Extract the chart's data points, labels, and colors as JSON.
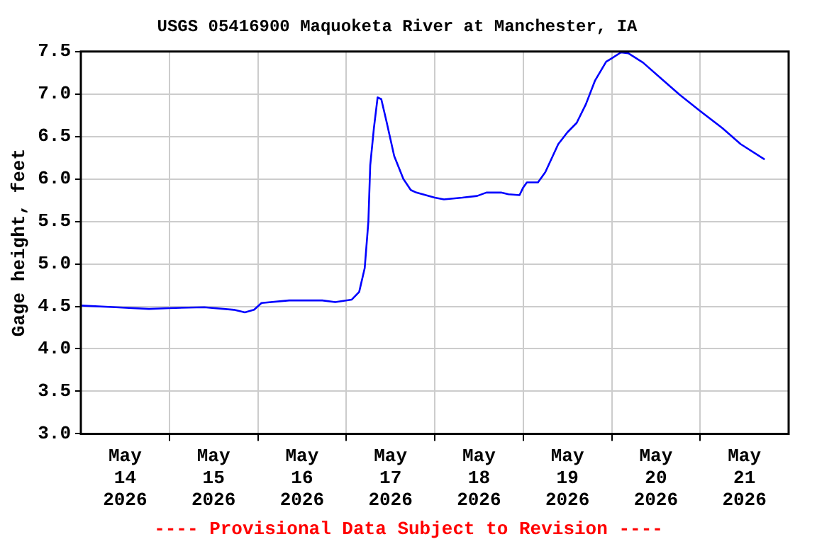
{
  "chart_data": {
    "type": "line",
    "title": "USGS 05416900 Maquoketa River at Manchester, IA",
    "ylabel": "Gage height, feet",
    "annotations": [
      "---- Provisional Data Subject to Revision ----"
    ],
    "x": [
      "2026-05-14T00:00",
      "2026-05-14T09:30",
      "2026-05-14T18:30",
      "2026-05-15T00:00",
      "2026-05-15T09:30",
      "2026-05-15T17:30",
      "2026-05-15T20:30",
      "2026-05-15T23:00",
      "2026-05-16T01:00",
      "2026-05-16T08:30",
      "2026-05-16T17:30",
      "2026-05-16T21:00",
      "2026-05-17T01:30",
      "2026-05-17T03:30",
      "2026-05-17T05:00",
      "2026-05-17T06:00",
      "2026-05-17T06:30",
      "2026-05-17T07:30",
      "2026-05-17T08:30",
      "2026-05-17T09:30",
      "2026-05-17T11:00",
      "2026-05-17T13:00",
      "2026-05-17T15:30",
      "2026-05-17T17:30",
      "2026-05-17T19:00",
      "2026-05-18T00:00",
      "2026-05-18T02:30",
      "2026-05-18T07:30",
      "2026-05-18T11:30",
      "2026-05-18T14:00",
      "2026-05-18T18:00",
      "2026-05-18T20:00",
      "2026-05-18T23:00",
      "2026-05-19T00:00",
      "2026-05-19T01:00",
      "2026-05-19T04:00",
      "2026-05-19T06:00",
      "2026-05-19T09:30",
      "2026-05-19T12:00",
      "2026-05-19T14:30",
      "2026-05-19T17:00",
      "2026-05-19T19:30",
      "2026-05-19T22:30",
      "2026-05-20T00:00",
      "2026-05-20T02:30",
      "2026-05-20T04:30",
      "2026-05-20T08:30",
      "2026-05-20T13:30",
      "2026-05-20T18:30",
      "2026-05-21T00:00",
      "2026-05-21T06:00",
      "2026-05-21T11:00",
      "2026-05-21T17:30"
    ],
    "series": [
      {
        "color": "#0000ff",
        "values": [
          4.51,
          4.49,
          4.47,
          4.48,
          4.49,
          4.46,
          4.43,
          4.46,
          4.54,
          4.57,
          4.57,
          4.55,
          4.58,
          4.67,
          4.95,
          5.5,
          6.16,
          6.6,
          6.96,
          6.94,
          6.66,
          6.27,
          6.0,
          5.87,
          5.84,
          5.78,
          5.76,
          5.78,
          5.8,
          5.84,
          5.84,
          5.82,
          5.81,
          5.9,
          5.96,
          5.96,
          6.08,
          6.41,
          6.55,
          6.66,
          6.88,
          7.16,
          7.38,
          7.42,
          7.49,
          7.48,
          7.37,
          7.18,
          6.99,
          6.8,
          6.6,
          6.41,
          6.23
        ]
      }
    ],
    "xlim": [
      "2026-05-14",
      "2026-05-22"
    ],
    "xticks": [
      {
        "value": "2026-05-14T12:00",
        "label": "May\n14\n2026"
      },
      {
        "value": "2026-05-15",
        "label": null
      },
      {
        "value": "2026-05-15T12:00",
        "label": "May\n15\n2026"
      },
      {
        "value": "2026-05-16",
        "label": null
      },
      {
        "value": "2026-05-16T12:00",
        "label": "May\n16\n2026"
      },
      {
        "value": "2026-05-17",
        "label": null
      },
      {
        "value": "2026-05-17T12:00",
        "label": "May\n17\n2026"
      },
      {
        "value": "2026-05-18",
        "label": null
      },
      {
        "value": "2026-05-18T12:00",
        "label": "May\n18\n2026"
      },
      {
        "value": "2026-05-19",
        "label": null
      },
      {
        "value": "2026-05-19T12:00",
        "label": "May\n19\n2026"
      },
      {
        "value": "2026-05-20",
        "label": null
      },
      {
        "value": "2026-05-20T12:00",
        "label": "May\n20\n2026"
      },
      {
        "value": "2026-05-21",
        "label": null
      },
      {
        "value": "2026-05-21T12:00",
        "label": "May\n21\n2026"
      }
    ],
    "ylim": [
      3.0,
      7.5
    ],
    "yticks": [
      {
        "value": 3,
        "label": "3.0"
      },
      {
        "value": 3.5,
        "label": "3.5"
      },
      {
        "value": 4,
        "label": "4.0"
      },
      {
        "value": 4.5,
        "label": "4.5"
      },
      {
        "value": 5,
        "label": "5.0"
      },
      {
        "value": 5.5,
        "label": "5.5"
      },
      {
        "value": 6,
        "label": "6.0"
      },
      {
        "value": 6.5,
        "label": "6.5"
      },
      {
        "value": 7,
        "label": "7.0"
      },
      {
        "value": 7.5,
        "label": "7.5"
      }
    ],
    "grid": true,
    "marker": "none",
    "line_style": "solid",
    "legend": false
  }
}
